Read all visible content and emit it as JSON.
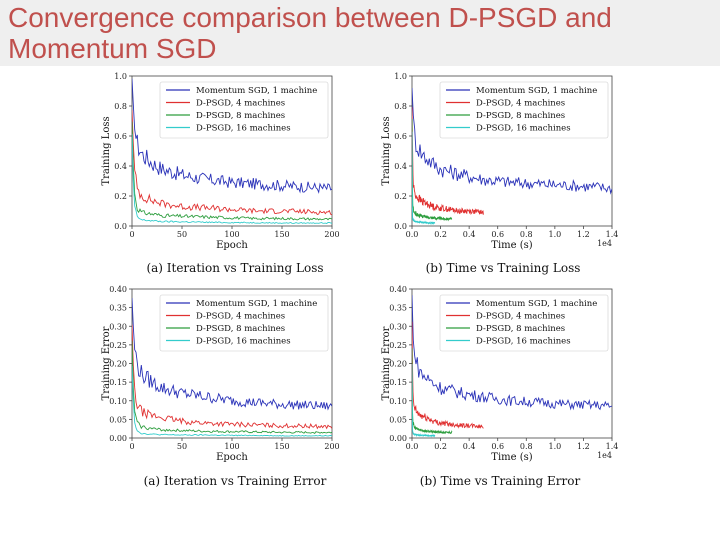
{
  "slide": {
    "title": "Convergence comparison between D-PSGD and Momentum SGD"
  },
  "colors": {
    "momentum": "#2a32b8",
    "dpsgd4": "#e03131",
    "dpsgd8": "#2e9e3f",
    "dpsgd16": "#33cccc",
    "title": "#c0504d"
  },
  "chart_data": [
    {
      "type": "line",
      "caption": "(a) Iteration vs Training Loss",
      "xlabel": "Epoch",
      "ylabel": "Training Loss",
      "xlim": [
        0,
        200
      ],
      "ylim": [
        0.0,
        1.0
      ],
      "xticks": [
        "0",
        "50",
        "100",
        "150",
        "200"
      ],
      "xtick_values": [
        0,
        50,
        100,
        150,
        200
      ],
      "yticks": [
        "0.0",
        "0.2",
        "0.4",
        "0.6",
        "0.8",
        "1.0"
      ],
      "ytick_values": [
        0.0,
        0.2,
        0.4,
        0.6,
        0.8,
        1.0
      ],
      "xscale_note": "",
      "series": [
        {
          "name": "Momentum SGD, 1 machine",
          "x": [
            0,
            2,
            5,
            10,
            20,
            30,
            50,
            75,
            100,
            125,
            150,
            175,
            200
          ],
          "values": [
            0.95,
            0.7,
            0.55,
            0.48,
            0.42,
            0.38,
            0.34,
            0.31,
            0.29,
            0.28,
            0.27,
            0.26,
            0.25
          ]
        },
        {
          "name": "D-PSGD, 4 machines",
          "x": [
            0,
            2,
            5,
            10,
            20,
            30,
            50,
            75,
            100,
            125,
            150,
            175,
            200
          ],
          "values": [
            0.8,
            0.4,
            0.25,
            0.2,
            0.17,
            0.15,
            0.13,
            0.12,
            0.11,
            0.1,
            0.1,
            0.095,
            0.09
          ]
        },
        {
          "name": "D-PSGD, 8 machines",
          "x": [
            0,
            2,
            5,
            10,
            20,
            30,
            50,
            75,
            100,
            125,
            150,
            175,
            200
          ],
          "values": [
            0.7,
            0.25,
            0.12,
            0.09,
            0.08,
            0.07,
            0.065,
            0.06,
            0.055,
            0.05,
            0.05,
            0.048,
            0.045
          ]
        },
        {
          "name": "D-PSGD, 16 machines",
          "x": [
            0,
            2,
            5,
            10,
            20,
            30,
            50,
            75,
            100,
            125,
            150,
            175,
            200
          ],
          "values": [
            0.6,
            0.15,
            0.06,
            0.04,
            0.035,
            0.03,
            0.028,
            0.025,
            0.023,
            0.022,
            0.02,
            0.02,
            0.02
          ]
        }
      ]
    },
    {
      "type": "line",
      "caption": "(b) Time vs Training Loss",
      "xlabel": "Time (s)",
      "ylabel": "Training Loss",
      "xlim": [
        0.0,
        1.4
      ],
      "ylim": [
        0.0,
        1.0
      ],
      "xticks": [
        "0.0",
        "0.2",
        "0.4",
        "0.6",
        "0.8",
        "1.0",
        "1.2",
        "1.4"
      ],
      "xtick_values": [
        0.0,
        0.2,
        0.4,
        0.6,
        0.8,
        1.0,
        1.2,
        1.4
      ],
      "yticks": [
        "0.0",
        "0.2",
        "0.4",
        "0.6",
        "0.8",
        "1.0"
      ],
      "ytick_values": [
        0.0,
        0.2,
        0.4,
        0.6,
        0.8,
        1.0
      ],
      "xscale_note": "1e4",
      "series": [
        {
          "name": "Momentum SGD, 1 machine",
          "x": [
            0.0,
            0.01,
            0.03,
            0.07,
            0.14,
            0.2,
            0.35,
            0.5,
            0.7,
            0.9,
            1.1,
            1.3,
            1.4
          ],
          "values": [
            0.95,
            0.7,
            0.55,
            0.48,
            0.42,
            0.38,
            0.34,
            0.31,
            0.29,
            0.28,
            0.27,
            0.26,
            0.25
          ]
        },
        {
          "name": "D-PSGD, 4 machines",
          "x": [
            0.0,
            0.005,
            0.01,
            0.03,
            0.06,
            0.1,
            0.15,
            0.2,
            0.27,
            0.33,
            0.4,
            0.45,
            0.5
          ],
          "values": [
            0.8,
            0.4,
            0.25,
            0.2,
            0.17,
            0.15,
            0.13,
            0.12,
            0.11,
            0.1,
            0.1,
            0.095,
            0.09
          ]
        },
        {
          "name": "D-PSGD, 8 machines",
          "x": [
            0.0,
            0.003,
            0.007,
            0.015,
            0.03,
            0.05,
            0.08,
            0.11,
            0.15,
            0.18,
            0.22,
            0.25,
            0.28
          ],
          "values": [
            0.7,
            0.25,
            0.12,
            0.09,
            0.08,
            0.07,
            0.065,
            0.06,
            0.055,
            0.05,
            0.05,
            0.048,
            0.045
          ]
        },
        {
          "name": "D-PSGD, 16 machines",
          "x": [
            0.0,
            0.002,
            0.004,
            0.008,
            0.015,
            0.025,
            0.04,
            0.06,
            0.08,
            0.1,
            0.12,
            0.14,
            0.16
          ],
          "values": [
            0.6,
            0.15,
            0.06,
            0.04,
            0.035,
            0.03,
            0.028,
            0.025,
            0.023,
            0.022,
            0.02,
            0.02,
            0.02
          ]
        }
      ]
    },
    {
      "type": "line",
      "caption": "(a) Iteration vs Training Error",
      "xlabel": "Epoch",
      "ylabel": "Training Error",
      "xlim": [
        0,
        200
      ],
      "ylim": [
        0.0,
        0.4
      ],
      "xticks": [
        "0",
        "50",
        "100",
        "150",
        "200"
      ],
      "xtick_values": [
        0,
        50,
        100,
        150,
        200
      ],
      "yticks": [
        "0.00",
        "0.05",
        "0.10",
        "0.15",
        "0.20",
        "0.25",
        "0.30",
        "0.35",
        "0.40"
      ],
      "ytick_values": [
        0.0,
        0.05,
        0.1,
        0.15,
        0.2,
        0.25,
        0.3,
        0.35,
        0.4
      ],
      "xscale_note": "",
      "series": [
        {
          "name": "Momentum SGD, 1 machine",
          "x": [
            0,
            2,
            5,
            10,
            20,
            30,
            50,
            75,
            100,
            125,
            150,
            175,
            200
          ],
          "values": [
            0.38,
            0.25,
            0.2,
            0.17,
            0.15,
            0.135,
            0.12,
            0.11,
            0.1,
            0.095,
            0.09,
            0.088,
            0.085
          ]
        },
        {
          "name": "D-PSGD, 4 machines",
          "x": [
            0,
            2,
            5,
            10,
            20,
            30,
            50,
            75,
            100,
            125,
            150,
            175,
            200
          ],
          "values": [
            0.3,
            0.14,
            0.09,
            0.07,
            0.06,
            0.055,
            0.045,
            0.04,
            0.037,
            0.035,
            0.033,
            0.032,
            0.03
          ]
        },
        {
          "name": "D-PSGD, 8 machines",
          "x": [
            0,
            2,
            5,
            10,
            20,
            30,
            50,
            75,
            100,
            125,
            150,
            175,
            200
          ],
          "values": [
            0.25,
            0.08,
            0.04,
            0.03,
            0.025,
            0.022,
            0.02,
            0.018,
            0.017,
            0.016,
            0.015,
            0.015,
            0.015
          ]
        },
        {
          "name": "D-PSGD, 16 machines",
          "x": [
            0,
            2,
            5,
            10,
            20,
            30,
            50,
            75,
            100,
            125,
            150,
            175,
            200
          ],
          "values": [
            0.2,
            0.05,
            0.02,
            0.012,
            0.01,
            0.009,
            0.008,
            0.008,
            0.007,
            0.007,
            0.006,
            0.006,
            0.006
          ]
        }
      ]
    },
    {
      "type": "line",
      "caption": "(b) Time vs Training Error",
      "xlabel": "Time (s)",
      "ylabel": "Training Error",
      "xlim": [
        0.0,
        1.4
      ],
      "ylim": [
        0.0,
        0.4
      ],
      "xticks": [
        "0.0",
        "0.2",
        "0.4",
        "0.6",
        "0.8",
        "1.0",
        "1.2",
        "1.4"
      ],
      "xtick_values": [
        0.0,
        0.2,
        0.4,
        0.6,
        0.8,
        1.0,
        1.2,
        1.4
      ],
      "yticks": [
        "0.00",
        "0.05",
        "0.10",
        "0.15",
        "0.20",
        "0.25",
        "0.30",
        "0.35",
        "0.40"
      ],
      "ytick_values": [
        0.0,
        0.05,
        0.1,
        0.15,
        0.2,
        0.25,
        0.3,
        0.35,
        0.4
      ],
      "xscale_note": "1e4",
      "series": [
        {
          "name": "Momentum SGD, 1 machine",
          "x": [
            0.0,
            0.01,
            0.03,
            0.07,
            0.14,
            0.2,
            0.35,
            0.5,
            0.7,
            0.9,
            1.1,
            1.3,
            1.4
          ],
          "values": [
            0.38,
            0.25,
            0.2,
            0.17,
            0.15,
            0.135,
            0.12,
            0.11,
            0.1,
            0.095,
            0.09,
            0.088,
            0.085
          ]
        },
        {
          "name": "D-PSGD, 4 machines",
          "x": [
            0.0,
            0.005,
            0.01,
            0.03,
            0.06,
            0.1,
            0.15,
            0.2,
            0.27,
            0.33,
            0.4,
            0.45,
            0.5
          ],
          "values": [
            0.3,
            0.14,
            0.09,
            0.07,
            0.06,
            0.055,
            0.045,
            0.04,
            0.037,
            0.035,
            0.033,
            0.032,
            0.03
          ]
        },
        {
          "name": "D-PSGD, 8 machines",
          "x": [
            0.0,
            0.003,
            0.007,
            0.015,
            0.03,
            0.05,
            0.08,
            0.11,
            0.15,
            0.18,
            0.22,
            0.25,
            0.28
          ],
          "values": [
            0.25,
            0.08,
            0.04,
            0.03,
            0.025,
            0.022,
            0.02,
            0.018,
            0.017,
            0.016,
            0.015,
            0.015,
            0.015
          ]
        },
        {
          "name": "D-PSGD, 16 machines",
          "x": [
            0.0,
            0.002,
            0.004,
            0.008,
            0.015,
            0.025,
            0.04,
            0.06,
            0.08,
            0.1,
            0.12,
            0.14,
            0.16
          ],
          "values": [
            0.2,
            0.05,
            0.02,
            0.012,
            0.01,
            0.009,
            0.008,
            0.008,
            0.007,
            0.007,
            0.006,
            0.006,
            0.006
          ]
        }
      ]
    }
  ]
}
